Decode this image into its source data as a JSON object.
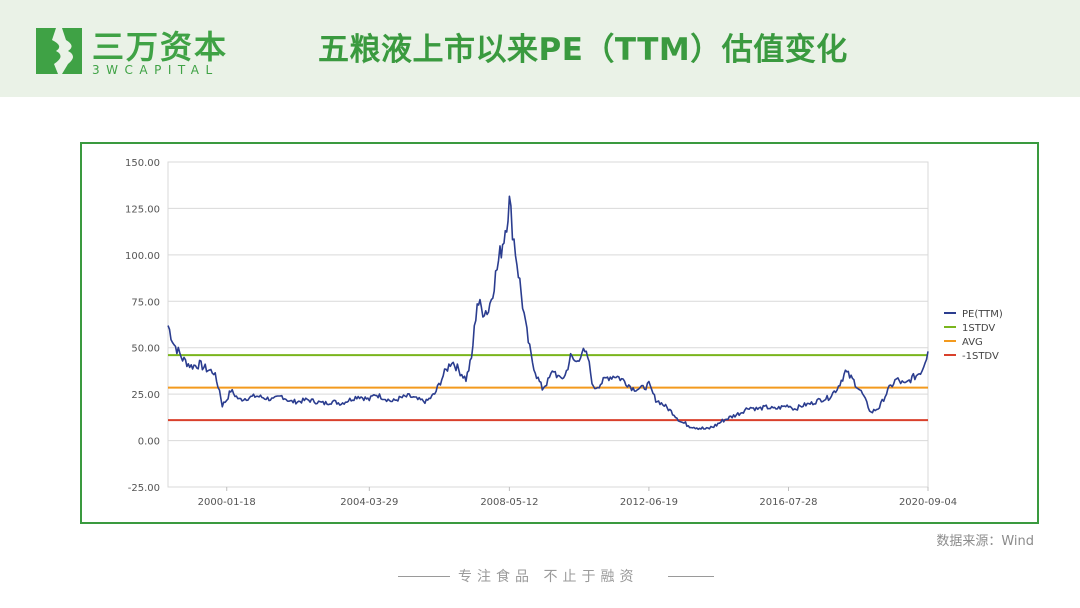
{
  "header": {
    "logo_cn": "三万资本",
    "logo_en": "3WCAPITAL",
    "title": "五粮液上市以来PE（TTM）估值变化"
  },
  "source": "数据来源：Wind",
  "footer": "专注食品  不止于融资",
  "colors": {
    "brand_green": "#3fa245",
    "pe_line": "#2b3d8f",
    "std_up": "#7ab51d",
    "avg": "#f39a1e",
    "std_down": "#d9402b",
    "header_bg": "#eaf2e7"
  },
  "chart_data": {
    "type": "line",
    "title": "",
    "xlabel": "",
    "ylabel": "",
    "ylim": [
      -25,
      150
    ],
    "yticks": [
      "150.00",
      "125.00",
      "100.00",
      "75.00",
      "50.00",
      "25.00",
      "0.00",
      "-25.00"
    ],
    "xticks": [
      "2000-01-18",
      "2004-03-29",
      "2008-05-12",
      "2012-06-19",
      "2016-07-28",
      "2020-09-04"
    ],
    "grid": true,
    "legend_position": "right",
    "series": [
      {
        "name": "PE(TTM)",
        "color": "#2b3d8f",
        "x": [
          "1998-04-27",
          "1998-07-01",
          "1998-10-01",
          "1999-01-01",
          "1999-04-01",
          "1999-07-01",
          "1999-09-01",
          "1999-11-01",
          "1999-12-01",
          "2000-01-18",
          "2000-03-01",
          "2000-06-01",
          "2000-09-01",
          "2000-12-01",
          "2001-03-01",
          "2001-06-01",
          "2001-09-01",
          "2001-12-01",
          "2002-03-01",
          "2002-06-01",
          "2002-09-01",
          "2002-12-01",
          "2003-03-01",
          "2003-06-01",
          "2003-09-01",
          "2003-12-01",
          "2004-03-29",
          "2004-06-01",
          "2004-09-01",
          "2004-12-01",
          "2005-03-01",
          "2005-06-01",
          "2005-09-01",
          "2005-12-01",
          "2006-03-01",
          "2006-06-01",
          "2006-09-01",
          "2006-12-01",
          "2007-02-01",
          "2007-04-01",
          "2007-06-01",
          "2007-08-01",
          "2007-10-01",
          "2007-12-01",
          "2008-02-01",
          "2008-03-15",
          "2008-05-12",
          "2008-07-01",
          "2008-09-01",
          "2008-11-01",
          "2009-01-01",
          "2009-03-01",
          "2009-05-01",
          "2009-07-01",
          "2009-09-01",
          "2009-11-01",
          "2010-01-01",
          "2010-03-01",
          "2010-05-01",
          "2010-07-01",
          "2010-09-01",
          "2010-11-01",
          "2011-01-01",
          "2011-04-01",
          "2011-07-01",
          "2011-10-01",
          "2012-01-01",
          "2012-04-01",
          "2012-06-19",
          "2012-09-01",
          "2012-12-01",
          "2013-03-01",
          "2013-06-01",
          "2013-09-01",
          "2013-12-01",
          "2014-03-01",
          "2014-06-01",
          "2014-09-01",
          "2014-12-01",
          "2015-03-01",
          "2015-06-01",
          "2015-09-01",
          "2015-12-01",
          "2016-03-01",
          "2016-07-28",
          "2016-10-01",
          "2017-01-01",
          "2017-04-01",
          "2017-07-01",
          "2017-10-01",
          "2018-01-01",
          "2018-04-01",
          "2018-07-01",
          "2018-10-01",
          "2019-01-01",
          "2019-04-01",
          "2019-07-01",
          "2019-10-01",
          "2020-01-01",
          "2020-03-01",
          "2020-05-01",
          "2020-07-01",
          "2020-09-04"
        ],
        "values": [
          62,
          52,
          44,
          40,
          41,
          38,
          37,
          27,
          19,
          22,
          27,
          22,
          23,
          24,
          23,
          22,
          24,
          21,
          21,
          22,
          21,
          20,
          21,
          20,
          22,
          24,
          22,
          25,
          23,
          21,
          23,
          24,
          22,
          21,
          25,
          35,
          43,
          37,
          33,
          44,
          75,
          70,
          70,
          85,
          100,
          110,
          128,
          108,
          85,
          62,
          45,
          35,
          28,
          32,
          38,
          33,
          35,
          45,
          42,
          48,
          45,
          28,
          30,
          34,
          35,
          32,
          28,
          28,
          30,
          22,
          19,
          15,
          10,
          8,
          7,
          6,
          8,
          11,
          13,
          15,
          18,
          17,
          18,
          17,
          19,
          17,
          19,
          20,
          22,
          23,
          28,
          37,
          32,
          25,
          15,
          18,
          27,
          33,
          30,
          33,
          35,
          38,
          48
        ]
      },
      {
        "name": "1STDV",
        "color": "#7ab51d",
        "value": 46
      },
      {
        "name": "AVG",
        "color": "#f39a1e",
        "value": 28.5
      },
      {
        "name": "-1STDV",
        "color": "#d9402b",
        "value": 11
      }
    ]
  }
}
